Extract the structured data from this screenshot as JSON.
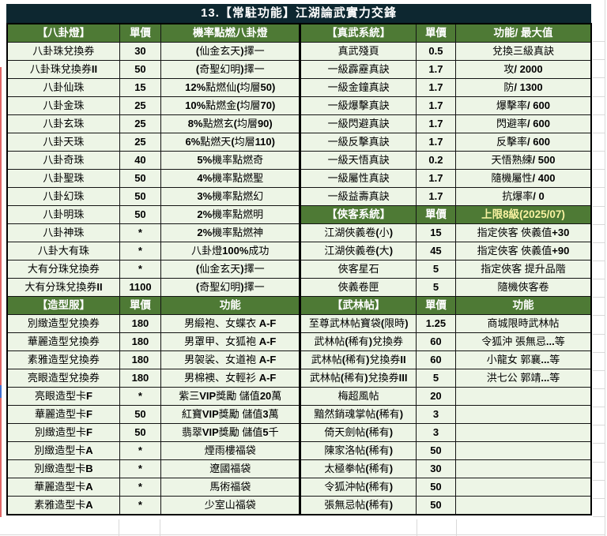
{
  "title": "13.【常駐功能】江湖論武實力交鋒",
  "colors": {
    "title_bar_bg": "#0d2730",
    "section_header_bg": "#4e7a35",
    "row_bg": "#edf5e6",
    "header_text": "#ffffff",
    "highlight_header_text": "#f8f2a2",
    "grid_border": "#000000"
  },
  "left_table": {
    "sections": [
      {
        "header": [
          "【八卦燈】",
          "單價",
          "機率點燃八卦燈"
        ],
        "rows": [
          [
            "八卦珠兌換券",
            "30",
            "(仙金玄天)擇一"
          ],
          [
            "八卦珠兌換券II",
            "50",
            "(奇聖幻明)擇一"
          ],
          [
            "八卦仙珠",
            "15",
            "12%點燃仙(均層50)"
          ],
          [
            "八卦金珠",
            "25",
            "10%點燃金(均層70)"
          ],
          [
            "八卦玄珠",
            "25",
            "8%點燃玄(均層90)"
          ],
          [
            "八卦天珠",
            "25",
            "6%點燃天(均層110)"
          ],
          [
            "八卦奇珠",
            "40",
            "5%機率點燃奇"
          ],
          [
            "八卦聖珠",
            "50",
            "4%機率點燃聖"
          ],
          [
            "八卦幻珠",
            "50",
            "3%機率點燃幻"
          ],
          [
            "八卦明珠",
            "50",
            "2%機率點燃明"
          ],
          [
            "八卦神珠",
            "*",
            "2%機率點燃神"
          ],
          [
            "八卦大有珠",
            "*",
            "八卦燈100%成功"
          ],
          [
            "大有分珠兌換券",
            "*",
            "(仙金玄天)擇一"
          ],
          [
            "大有分珠兌換券II",
            "1100",
            "(奇聖幻明)擇一"
          ]
        ]
      },
      {
        "header": [
          "【造型服】",
          "單價",
          "功能"
        ],
        "rows": [
          [
            "別緻造型兌換券",
            "180",
            "男緞袍、女蝶衣 A-F"
          ],
          [
            "華麗造型兌換券",
            "180",
            "男罩甲、女狐袍 A-F"
          ],
          [
            "素雅造型兌換券",
            "180",
            "男袈裟、女道袍 A-F"
          ],
          [
            "亮眼造型兌換券",
            "180",
            "男棉襖、女輕衫 A-F"
          ],
          [
            "亮眼造型卡F",
            "*",
            "紫三VIP獎勵 儲值20萬"
          ],
          [
            "華麗造型卡F",
            "50",
            "紅寶VIP獎勵 儲值3萬"
          ],
          [
            "別緻造型卡F",
            "50",
            "翡翠VIP獎勵 儲值5千"
          ],
          [
            "別緻造型卡A",
            "*",
            "煙雨樓福袋"
          ],
          [
            "別緻造型卡B",
            "*",
            "遼國福袋"
          ],
          [
            "華麗造型卡A",
            "*",
            "馬術福袋"
          ],
          [
            "素雅造型卡A",
            "*",
            "少室山福袋"
          ]
        ]
      }
    ]
  },
  "right_table": {
    "sections": [
      {
        "header": [
          "【真武系統】",
          "單價",
          "功能/ 最大值"
        ],
        "rows": [
          [
            "真武殘頁",
            "0.5",
            "兌換三級真訣"
          ],
          [
            "一級霹靂真訣",
            "1.7",
            "攻/ 2000"
          ],
          [
            "一級金鐘真訣",
            "1.7",
            "防/ 1300"
          ],
          [
            "一級爆擊真訣",
            "1.7",
            "爆擊率/ 600"
          ],
          [
            "一級閃避真訣",
            "1.7",
            "閃避率/ 600"
          ],
          [
            "一級反擊真訣",
            "1.7",
            "反擊率/ 600"
          ],
          [
            "一級天悟真訣",
            "0.2",
            "天悟熟練/ 500"
          ],
          [
            "一級屬性真訣",
            "1.7",
            "隨機屬性/ 400"
          ],
          [
            "一級益壽真訣",
            "1.7",
            "抗爆率/ 0"
          ]
        ]
      },
      {
        "header": [
          "【俠客系統】",
          "單價",
          "上限8級(2025/07)"
        ],
        "header_highlight": true,
        "rows": [
          [
            "江湖俠義卷(小)",
            "15",
            "指定俠客 俠義值+30"
          ],
          [
            "江湖俠義卷(大)",
            "45",
            "指定俠客 俠義值+90"
          ],
          [
            "俠客星石",
            "5",
            "指定俠客 提升品階"
          ],
          [
            "俠義卷匣",
            "5",
            "隨機俠客卷"
          ]
        ]
      },
      {
        "header": [
          "【武林帖】",
          "單價",
          "功能"
        ],
        "rows": [
          [
            "至尊武林帖寶袋(限時)",
            "1.25",
            "商城限時武林帖"
          ],
          [
            "武林帖(稀有)兌換券",
            "60",
            "令狐沖 張無忌...等"
          ],
          [
            "武林帖(稀有)兌換券II",
            "60",
            "小龍女 郭襄...等"
          ],
          [
            "武林帖(稀有)兌換券III",
            "5",
            "洪七公 郭靖...等"
          ],
          [
            "梅超風帖",
            "20",
            ""
          ],
          [
            "黯然銷魂掌帖(稀有)",
            "3",
            ""
          ],
          [
            "倚天劍帖(稀有)",
            "3",
            ""
          ],
          [
            "陳家洛帖(稀有)",
            "50",
            ""
          ],
          [
            "太極拳帖(稀有)",
            "30",
            ""
          ],
          [
            "令狐沖帖(稀有)",
            "50",
            ""
          ],
          [
            "張無忌帖(稀有)",
            "50",
            ""
          ]
        ]
      }
    ]
  }
}
